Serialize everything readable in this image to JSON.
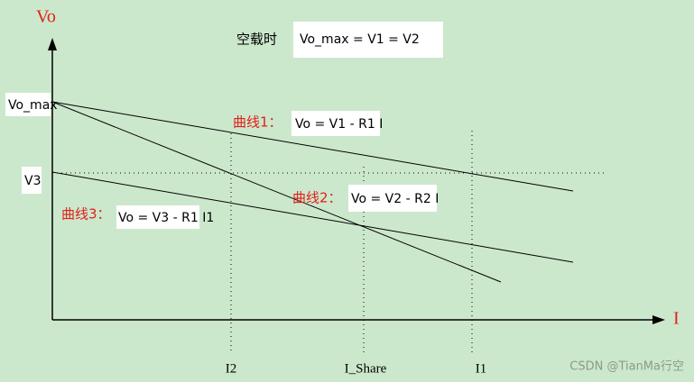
{
  "axes": {
    "y_label": "Vo",
    "x_label": "I"
  },
  "header": {
    "prefix": "空载时",
    "formula": "Vo_max = V1 = V2"
  },
  "y_marks": {
    "top": "Vo_max",
    "middle": "V3"
  },
  "curves": [
    {
      "label": "曲线1：",
      "formula": "Vo = V1 - R1 I"
    },
    {
      "label": "曲线2：",
      "formula": "Vo = V2 - R2 I"
    },
    {
      "label": "曲线3：",
      "formula": "Vo = V3 - R1 I1"
    }
  ],
  "x_marks": [
    "I2",
    "I_Share",
    "I1"
  ],
  "watermark": "CSDN @TianMa行空"
}
